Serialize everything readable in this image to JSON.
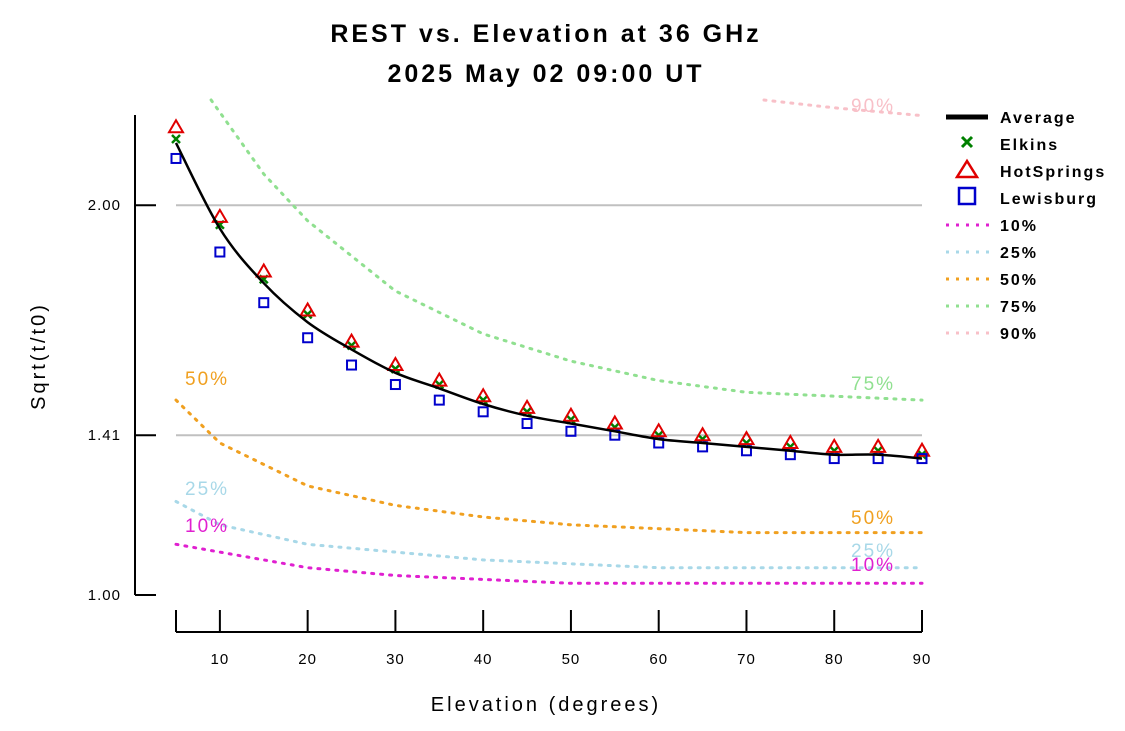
{
  "chart_data": {
    "type": "line",
    "title": "REST vs. Elevation at 36 GHz",
    "subtitle": "2025 May 02 09:00 UT",
    "xlabel": "Elevation (degrees)",
    "ylabel": "Sqrt(t/t0)",
    "xlim": [
      5,
      90
    ],
    "ylim": [
      1.0,
      2.27
    ],
    "x_ticks": [
      10,
      20,
      30,
      40,
      50,
      60,
      70,
      80,
      90
    ],
    "x_tick_labels": [
      "10",
      "20",
      "30",
      "40",
      "50",
      "60",
      "70",
      "80",
      "90"
    ],
    "y_ticks": [
      1.0,
      1.41,
      2.0
    ],
    "y_tick_labels": [
      "1.00",
      "1.41",
      "2.00"
    ],
    "gridlines_y": [
      1.41,
      2.0
    ],
    "grid": "horizontal reference lines",
    "legend_position": "right",
    "x": [
      5,
      10,
      15,
      20,
      25,
      30,
      35,
      40,
      45,
      50,
      55,
      60,
      65,
      70,
      75,
      80,
      85,
      90
    ],
    "series": [
      {
        "name": "Average",
        "style": "line",
        "color": "#000000",
        "values": [
          2.16,
          1.94,
          1.8,
          1.7,
          1.63,
          1.57,
          1.53,
          1.49,
          1.46,
          1.44,
          1.42,
          1.4,
          1.39,
          1.38,
          1.37,
          1.36,
          1.36,
          1.35
        ]
      },
      {
        "name": "Elkins",
        "style": "marker",
        "marker": "x",
        "color": "#008000",
        "values": [
          2.17,
          1.95,
          1.81,
          1.72,
          1.64,
          1.58,
          1.54,
          1.5,
          1.47,
          1.45,
          1.43,
          1.41,
          1.4,
          1.39,
          1.38,
          1.37,
          1.37,
          1.36
        ]
      },
      {
        "name": "HotSprings",
        "style": "marker",
        "marker": "triangle",
        "color": "#e00000",
        "values": [
          2.2,
          1.97,
          1.83,
          1.73,
          1.65,
          1.59,
          1.55,
          1.51,
          1.48,
          1.46,
          1.44,
          1.42,
          1.41,
          1.4,
          1.39,
          1.38,
          1.38,
          1.37
        ]
      },
      {
        "name": "Lewisburg",
        "style": "marker",
        "marker": "square",
        "color": "#0000cc",
        "values": [
          2.12,
          1.88,
          1.75,
          1.66,
          1.59,
          1.54,
          1.5,
          1.47,
          1.44,
          1.42,
          1.41,
          1.39,
          1.38,
          1.37,
          1.36,
          1.35,
          1.35,
          1.35
        ]
      }
    ],
    "percentile_curves": [
      {
        "name": "10%",
        "color": "#e020d0",
        "x": [
          5,
          10,
          20,
          30,
          40,
          50,
          60,
          70,
          80,
          90
        ],
        "values": [
          1.13,
          1.11,
          1.07,
          1.05,
          1.04,
          1.03,
          1.03,
          1.03,
          1.03,
          1.03
        ]
      },
      {
        "name": "25%",
        "color": "#a8d8e8",
        "x": [
          5,
          10,
          20,
          30,
          40,
          50,
          60,
          70,
          80,
          90
        ],
        "values": [
          1.24,
          1.18,
          1.13,
          1.11,
          1.09,
          1.08,
          1.07,
          1.07,
          1.07,
          1.07
        ]
      },
      {
        "name": "50%",
        "color": "#f0a020",
        "x": [
          5,
          10,
          20,
          30,
          40,
          50,
          60,
          70,
          80,
          90
        ],
        "values": [
          1.5,
          1.39,
          1.28,
          1.23,
          1.2,
          1.18,
          1.17,
          1.16,
          1.16,
          1.16
        ]
      },
      {
        "name": "75%",
        "color": "#90e090",
        "x": [
          9,
          15,
          20,
          30,
          40,
          50,
          60,
          70,
          80,
          90
        ],
        "values": [
          2.27,
          2.08,
          1.96,
          1.78,
          1.67,
          1.6,
          1.55,
          1.52,
          1.51,
          1.5
        ]
      },
      {
        "name": "90%",
        "color": "#f8c0c8",
        "x": [
          72,
          80,
          90
        ],
        "values": [
          2.27,
          2.25,
          2.23
        ]
      }
    ],
    "curve_labels": [
      {
        "text": "10%",
        "color": "#e020d0"
      },
      {
        "text": "25%",
        "color": "#a8d8e8"
      },
      {
        "text": "50%",
        "color": "#f0a020"
      },
      {
        "text": "75%",
        "color": "#90e090"
      },
      {
        "text": "90%",
        "color": "#f8c0c8"
      }
    ]
  }
}
